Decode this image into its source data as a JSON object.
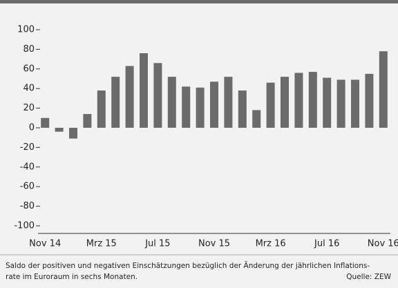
{
  "chart_data": {
    "type": "bar",
    "categories": [
      "Nov 14",
      null,
      null,
      null,
      "Mrz 15",
      null,
      null,
      null,
      "Jul 15",
      null,
      null,
      null,
      "Nov 15",
      null,
      null,
      null,
      "Mrz 16",
      null,
      null,
      null,
      "Jul 16",
      null,
      null,
      null,
      "Nov 16"
    ],
    "values": [
      10,
      -4,
      -11,
      14,
      38,
      52,
      63,
      76,
      66,
      52,
      42,
      41,
      47,
      52,
      38,
      18,
      46,
      52,
      56,
      57,
      51,
      49,
      49,
      55,
      78
    ],
    "color": "#6b6b6b",
    "ylim": [
      -100,
      100
    ],
    "yticks": [
      -100,
      -80,
      -60,
      -40,
      -20,
      0,
      20,
      40,
      60,
      80,
      100
    ],
    "grid": false,
    "caption": [
      "Saldo der positiven und negativen Einschätzungen bezüglich der Änderung der jährlichen Inflations-",
      "rate im Euroraum in sechs Monaten."
    ],
    "source": "Quelle: ZEW"
  }
}
